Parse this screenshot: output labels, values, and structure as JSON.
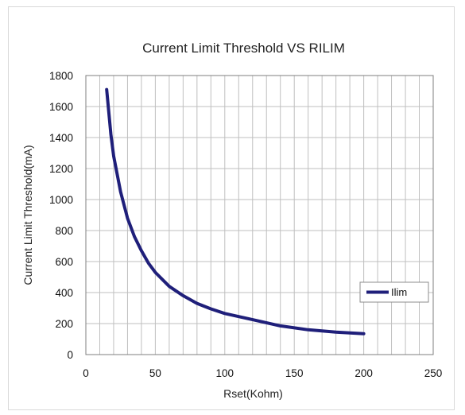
{
  "chart_data": {
    "type": "line",
    "title": "Current Limit Threshold VS RILIM",
    "xlabel": "Rset(Kohm)",
    "ylabel": "Current Limit Threshold(mA)",
    "xlim": [
      0,
      250
    ],
    "ylim": [
      0,
      1800
    ],
    "x_ticks": [
      0,
      50,
      100,
      150,
      200,
      250
    ],
    "y_ticks": [
      0,
      200,
      400,
      600,
      800,
      1000,
      1200,
      1400,
      1600,
      1800
    ],
    "grid": true,
    "legend_position": "right",
    "series": [
      {
        "name": "Ilim",
        "color": "#1f1f7a",
        "x": [
          15,
          18,
          20,
          25,
          30,
          35,
          40,
          45,
          50,
          60,
          70,
          80,
          90,
          100,
          120,
          140,
          160,
          180,
          200
        ],
        "y": [
          1710,
          1420,
          1280,
          1050,
          880,
          760,
          670,
          590,
          530,
          440,
          380,
          330,
          295,
          265,
          225,
          185,
          160,
          145,
          135
        ]
      }
    ]
  }
}
